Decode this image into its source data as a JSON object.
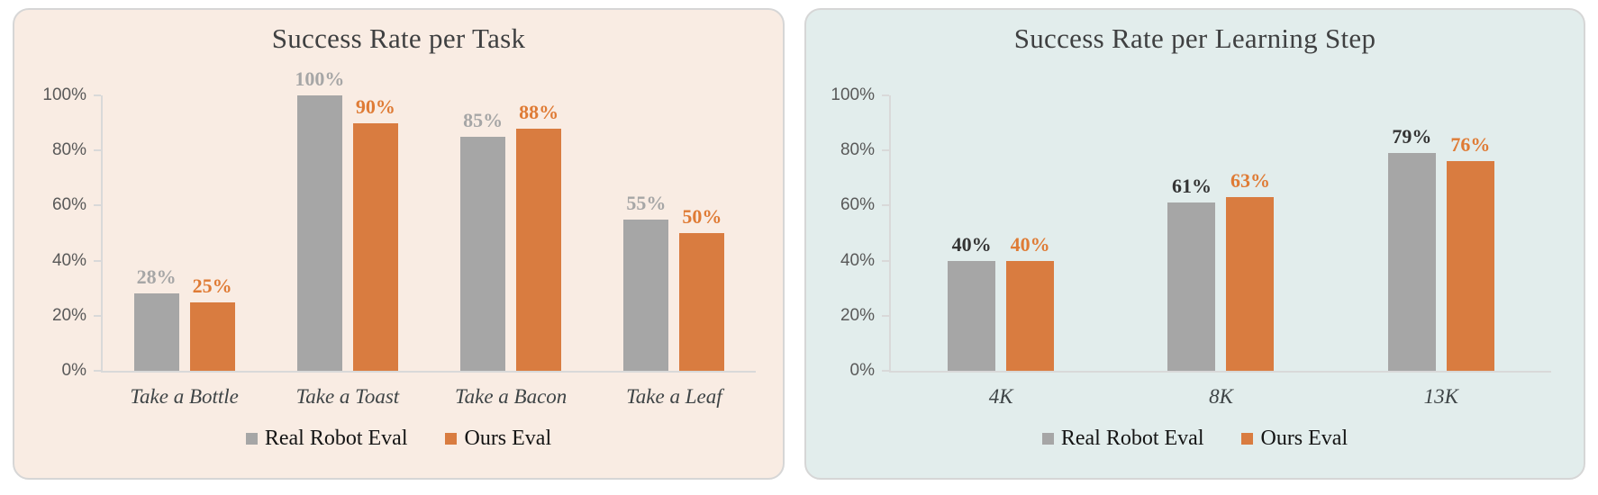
{
  "page": {
    "background": "#ffffff"
  },
  "chart_data": [
    {
      "type": "bar",
      "title": "Success Rate per Task",
      "categories": [
        "Take a Bottle",
        "Take a Toast",
        "Take a Bacon",
        "Take a Leaf"
      ],
      "series": [
        {
          "name": "Real Robot Eval",
          "values": [
            28,
            100,
            85,
            55
          ],
          "bar_color": "#a6a6a6",
          "label_color": "#a6a6a6"
        },
        {
          "name": "Ours Eval",
          "values": [
            25,
            90,
            88,
            50
          ],
          "bar_color": "#d97c40",
          "label_color": "#df7b35"
        }
      ],
      "value_suffix": "%",
      "ylim": [
        0,
        100
      ],
      "y_ticks": [
        100,
        80,
        60,
        40,
        20,
        0
      ],
      "y_tick_suffix": "%",
      "grid": false,
      "legend_position": "bottom",
      "panel_bg": "#f9ece3",
      "title_color": "#3f4041",
      "axis_color": "#d9d9d9",
      "tick_label_color": "#595959",
      "category_color": "#3e4446"
    },
    {
      "type": "bar",
      "title": "Success Rate per Learning Step",
      "categories": [
        "4K",
        "8K",
        "13K"
      ],
      "series": [
        {
          "name": "Real Robot Eval",
          "values": [
            40,
            61,
            79
          ],
          "bar_color": "#a6a6a6",
          "label_color": "#343434"
        },
        {
          "name": "Ours Eval",
          "values": [
            40,
            63,
            76
          ],
          "bar_color": "#d97c40",
          "label_color": "#df7b35"
        }
      ],
      "value_suffix": "%",
      "ylim": [
        0,
        100
      ],
      "y_ticks": [
        100,
        80,
        60,
        40,
        20,
        0
      ],
      "y_tick_suffix": "%",
      "grid": false,
      "legend_position": "bottom",
      "panel_bg": "#e2edec",
      "title_color": "#3f4041",
      "axis_color": "#d9d9d9",
      "tick_label_color": "#595959",
      "category_color": "#3e4446"
    }
  ]
}
